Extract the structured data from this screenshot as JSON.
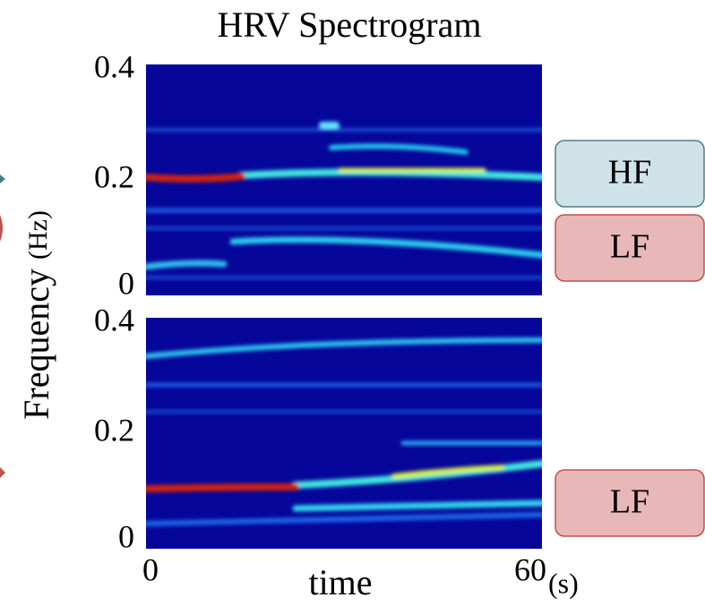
{
  "title": "HRV Spectrogram",
  "y_label": "Frequency",
  "y_unit": "(Hz)",
  "x_label": "time",
  "x_unit": "(s)",
  "xlim": [
    0,
    60
  ],
  "xticks": [
    0,
    60
  ],
  "panels": [
    {
      "ylim": [
        0,
        0.4
      ],
      "yticks": [
        0,
        0.2,
        0.4
      ],
      "bands": [
        "HF",
        "LF"
      ]
    },
    {
      "ylim": [
        0,
        0.4
      ],
      "yticks": [
        0,
        0.2,
        0.4
      ],
      "bands": [
        "LF"
      ]
    }
  ]
}
